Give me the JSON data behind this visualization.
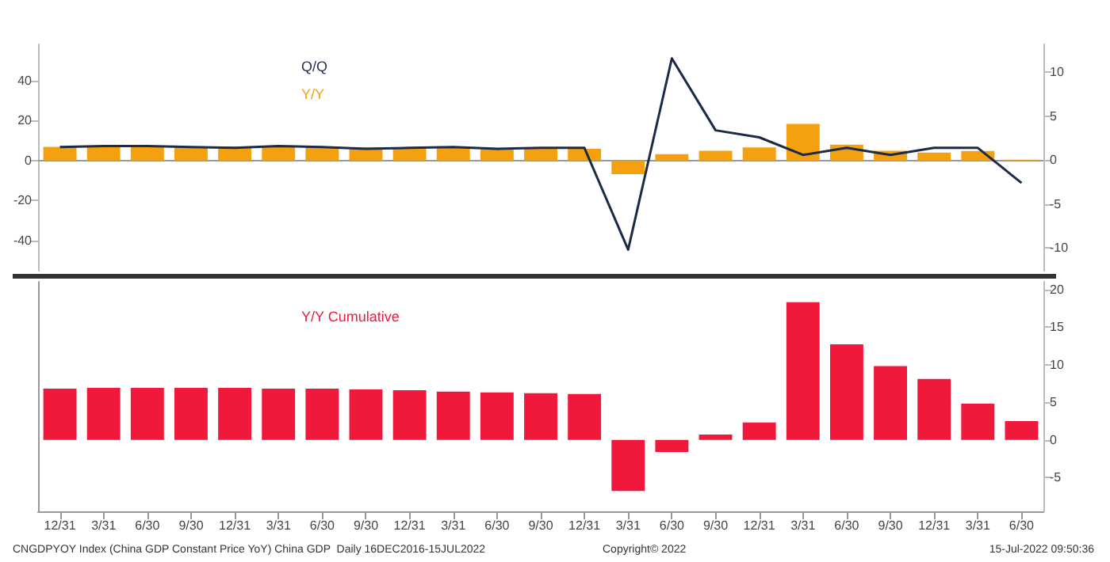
{
  "chart_data": [
    {
      "type": "bar",
      "categories": [
        null,
        null,
        null,
        null,
        null,
        null,
        null,
        null,
        null,
        null,
        null,
        null,
        null,
        null,
        null,
        null,
        null,
        null,
        null,
        null,
        null,
        null,
        null
      ],
      "series": [
        {
          "name": "Q/Q",
          "type": "line",
          "axis": "y2",
          "color": "#1b2a47",
          "values": [
            1.5,
            1.6,
            1.6,
            1.5,
            1.4,
            1.6,
            1.5,
            1.3,
            1.4,
            1.5,
            1.3,
            1.4,
            1.4,
            -10.2,
            11.6,
            3.4,
            2.6,
            0.6,
            1.4,
            0.6,
            1.4,
            1.4,
            -2.6
          ]
        },
        {
          "name": "Y/Y",
          "color": "#f5a00f",
          "values": [
            6.8,
            6.9,
            6.9,
            6.8,
            6.8,
            6.8,
            6.7,
            6.5,
            6.4,
            6.3,
            6.0,
            5.9,
            5.8,
            -6.8,
            3.2,
            4.9,
            6.5,
            18.3,
            7.9,
            4.9,
            4.0,
            4.8,
            0.4
          ]
        }
      ],
      "ylim": [
        -55,
        58
      ],
      "yticks": [
        -40,
        -20,
        0,
        20,
        40
      ],
      "y2lim": [
        -12.6,
        13.2
      ],
      "y2ticks": [
        -10,
        -5,
        0,
        5,
        10
      ],
      "tick_labels": "y",
      "legend": "top",
      "grid": false,
      "marker": "none",
      "line_style": "solid"
    },
    {
      "type": "bar",
      "categories": [
        "12/31",
        "3/31",
        "6/30",
        "9/30",
        "12/31",
        "3/31",
        "6/30",
        "9/30",
        "12/31",
        "3/31",
        "6/30",
        "9/30",
        "12/31",
        "3/31",
        "6/30",
        "9/30",
        "12/31",
        "3/31",
        "6/30",
        "9/30",
        "12/31",
        "3/31",
        "6/30"
      ],
      "series": [
        {
          "name": "Y/Y Cumulative",
          "axis": "y2",
          "color": "#f0193c",
          "values": [
            6.8,
            6.9,
            6.9,
            6.9,
            6.9,
            6.8,
            6.8,
            6.7,
            6.6,
            6.4,
            6.3,
            6.2,
            6.1,
            -6.8,
            -1.6,
            0.7,
            2.3,
            18.3,
            12.7,
            9.8,
            8.1,
            4.8,
            2.5
          ]
        }
      ],
      "y2lim": [
        -9.5,
        21
      ],
      "y2ticks": [
        -5,
        0,
        5,
        10,
        15,
        20
      ],
      "legend": "top",
      "grid": false,
      "annotations": [
        "CNGDPYOY Index (China GDP Constant Price YoY) China GDP  Daily 16DEC2016-15JUL2022",
        "Copyright© 2022",
        "15-Jul-2022 09:50:36"
      ]
    }
  ]
}
